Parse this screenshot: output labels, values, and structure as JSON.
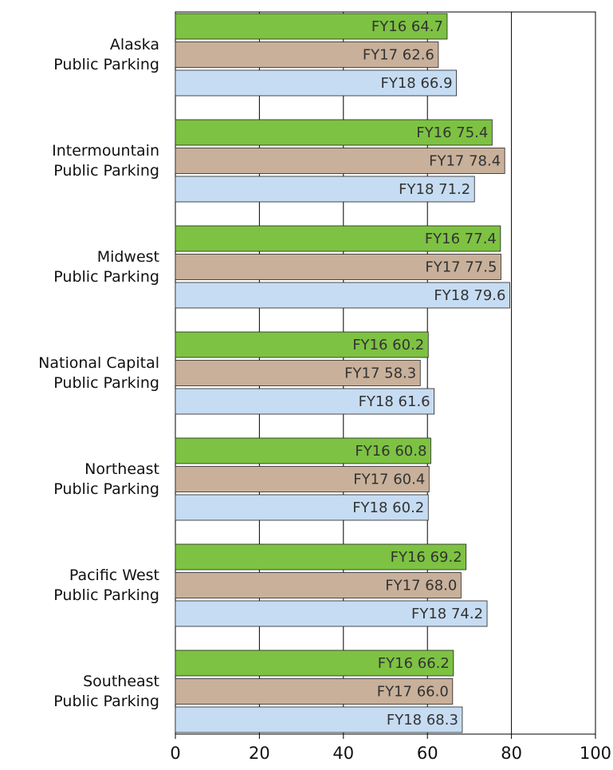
{
  "chart_data": {
    "type": "barh",
    "categories": [
      "Alaska\nPublic Parking",
      "Intermountain\nPublic Parking",
      "Midwest\nPublic Parking",
      "National Capital\nPublic Parking",
      "Northeast\nPublic Parking",
      "Pacific West\nPublic Parking",
      "Southeast\nPublic Parking"
    ],
    "series": [
      {
        "name": "FY16",
        "color": "#7dc242",
        "values": [
          64.7,
          75.4,
          77.4,
          60.2,
          60.8,
          69.2,
          66.2
        ],
        "value_labels": [
          "FY16 64.7",
          "FY16 75.4",
          "FY16 77.4",
          "FY16 60.2",
          "FY16 60.8",
          "FY16 69.2",
          "FY16 66.2"
        ]
      },
      {
        "name": "FY17",
        "color": "#c8b09a",
        "values": [
          62.6,
          78.4,
          77.5,
          58.3,
          60.4,
          68.0,
          66.0
        ],
        "value_labels": [
          "FY17 62.6",
          "FY17 78.4",
          "FY17 77.5",
          "FY17 58.3",
          "FY17 60.4",
          "FY17 68.0",
          "FY17 66.0"
        ]
      },
      {
        "name": "FY18",
        "color": "#c6dcf2",
        "values": [
          66.9,
          71.2,
          79.6,
          61.6,
          60.2,
          74.2,
          68.3
        ],
        "value_labels": [
          "FY18 66.9",
          "FY18 71.2",
          "FY18 79.6",
          "FY18 61.6",
          "FY18 60.2",
          "FY18 74.2",
          "FY18 68.3"
        ]
      }
    ],
    "xlim": [
      0,
      100
    ],
    "xticks": [
      0,
      20,
      40,
      60,
      80,
      100
    ],
    "grid": true
  }
}
